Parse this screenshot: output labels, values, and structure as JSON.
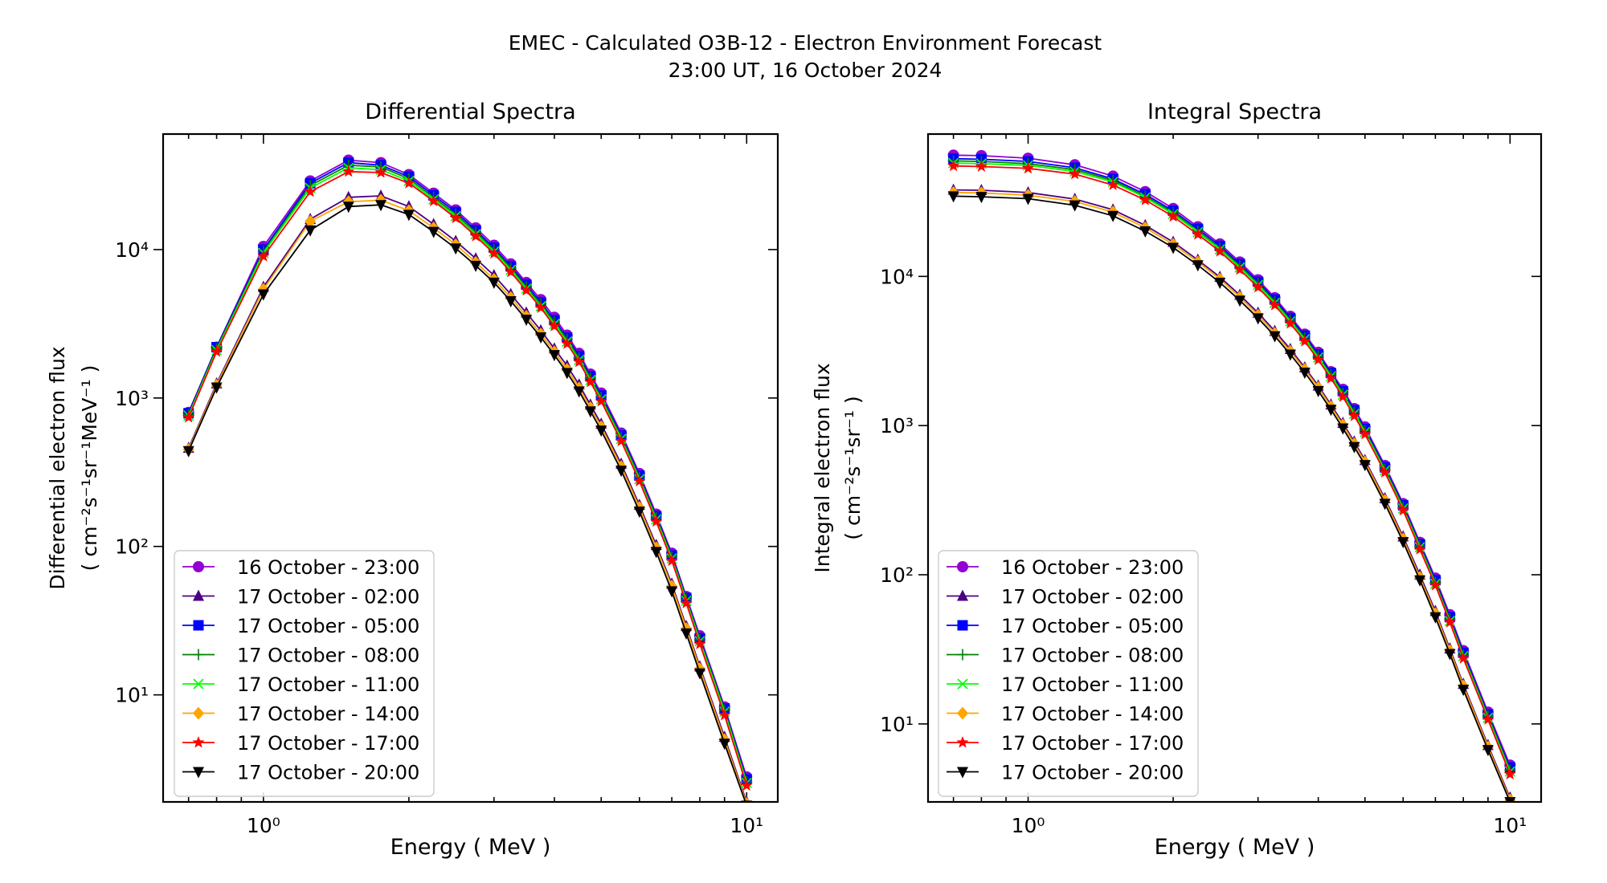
{
  "figure": {
    "title_line1": "EMEC - Calculated O3B-12 - Electron Environment Forecast",
    "title_line2": "23:00 UT, 16 October 2024"
  },
  "chart_data": [
    {
      "type": "line",
      "title": "Differential Spectra",
      "xlabel": "Energy ( MeV )",
      "ylabel_line1": "Differential electron flux",
      "ylabel_line2": "( cm⁻²s⁻¹sr⁻¹MeV⁻¹ )",
      "xscale": "log",
      "yscale": "log",
      "xlim": [
        0.62,
        11.6
      ],
      "ylim": [
        1.9,
        60000
      ],
      "xticks": [
        {
          "value": 1,
          "label": "10⁰"
        },
        {
          "value": 10,
          "label": "10¹"
        }
      ],
      "yticks": [
        {
          "value": 10,
          "label": "10¹"
        },
        {
          "value": 100,
          "label": "10²"
        },
        {
          "value": 1000,
          "label": "10³"
        },
        {
          "value": 10000,
          "label": "10⁴"
        }
      ],
      "legend_position": "lower-left",
      "x": [
        0.7,
        0.8,
        1.0,
        1.25,
        1.5,
        1.75,
        2.0,
        2.25,
        2.5,
        2.75,
        3.0,
        3.25,
        3.5,
        3.75,
        4.0,
        4.25,
        4.5,
        4.75,
        5.0,
        5.5,
        6.0,
        6.5,
        7.0,
        7.5,
        8.0,
        9.0,
        10.0
      ],
      "series": [
        {
          "name": "16 October - 23:00",
          "color": "#9400d3",
          "marker": "circle",
          "values": [
            800,
            2200,
            10500,
            29000,
            40000,
            38500,
            32000,
            24000,
            18500,
            14000,
            10700,
            8000,
            6000,
            4600,
            3500,
            2650,
            2000,
            1450,
            1080,
            580,
            310,
            165,
            90,
            46,
            25,
            8.3,
            2.8
          ]
        },
        {
          "name": "17 October - 02:00",
          "color": "#4b0082",
          "marker": "triangle-up",
          "values": [
            460,
            1250,
            5600,
            16000,
            22500,
            23000,
            19500,
            14800,
            11400,
            8700,
            6700,
            5000,
            3750,
            2850,
            2150,
            1650,
            1230,
            900,
            670,
            360,
            190,
            102,
            56,
            29,
            15.5,
            5.2,
            1.9
          ]
        },
        {
          "name": "17 October - 05:00",
          "color": "#0000ff",
          "marker": "square",
          "values": [
            790,
            2200,
            10000,
            28000,
            38500,
            37000,
            31000,
            23200,
            17900,
            13500,
            10300,
            7700,
            5800,
            4400,
            3350,
            2550,
            1920,
            1400,
            1040,
            560,
            300,
            160,
            87,
            45,
            24,
            8.1,
            2.7
          ]
        },
        {
          "name": "17 October - 08:00",
          "color": "#008000",
          "marker": "plus",
          "values": [
            770,
            2150,
            9700,
            27000,
            37000,
            36000,
            30000,
            22500,
            17300,
            13100,
            10000,
            7500,
            5600,
            4300,
            3250,
            2480,
            1860,
            1360,
            1010,
            545,
            292,
            156,
            85,
            44,
            23.5,
            7.9,
            2.6
          ]
        },
        {
          "name": "17 October - 11:00",
          "color": "#00ff00",
          "marker": "x",
          "values": [
            760,
            2100,
            9500,
            26000,
            35500,
            34500,
            29000,
            21800,
            16800,
            12700,
            9700,
            7300,
            5450,
            4150,
            3150,
            2400,
            1800,
            1320,
            980,
            530,
            284,
            152,
            83,
            43,
            23,
            7.7,
            2.55
          ]
        },
        {
          "name": "17 October - 14:00",
          "color": "#ffa500",
          "marker": "diamond",
          "values": [
            450,
            1220,
            5400,
            15500,
            21000,
            21500,
            18300,
            14000,
            10800,
            8200,
            6300,
            4750,
            3550,
            2700,
            2050,
            1560,
            1170,
            860,
            640,
            345,
            183,
            98,
            54,
            28,
            15,
            5.0,
            1.85
          ]
        },
        {
          "name": "17 October - 17:00",
          "color": "#ff0000",
          "marker": "star",
          "values": [
            740,
            2050,
            9000,
            24500,
            33500,
            33000,
            28000,
            21200,
            16300,
            12300,
            9400,
            7050,
            5300,
            4050,
            3050,
            2320,
            1750,
            1280,
            950,
            512,
            275,
            147,
            80,
            41.5,
            22,
            7.3,
            2.45
          ]
        },
        {
          "name": "17 October - 20:00",
          "color": "#000000",
          "marker": "triangle-down",
          "values": [
            440,
            1180,
            5000,
            13500,
            19500,
            20000,
            17200,
            13200,
            10200,
            7800,
            6000,
            4500,
            3380,
            2570,
            1950,
            1480,
            1110,
            815,
            605,
            325,
            172,
            92,
            50,
            26,
            14,
            4.7,
            1.8
          ]
        }
      ]
    },
    {
      "type": "line",
      "title": "Integral Spectra",
      "xlabel": "Energy ( MeV )",
      "ylabel_line1": "Integral electron flux",
      "ylabel_line2": "( cm⁻²s⁻¹sr⁻¹ )",
      "xscale": "log",
      "yscale": "log",
      "xlim": [
        0.62,
        11.6
      ],
      "ylim": [
        3.0,
        90000
      ],
      "xticks": [
        {
          "value": 1,
          "label": "10⁰"
        },
        {
          "value": 10,
          "label": "10¹"
        }
      ],
      "yticks": [
        {
          "value": 10,
          "label": "10¹"
        },
        {
          "value": 100,
          "label": "10²"
        },
        {
          "value": 1000,
          "label": "10³"
        },
        {
          "value": 10000,
          "label": "10⁴"
        }
      ],
      "legend_position": "lower-left",
      "x": [
        0.7,
        0.8,
        1.0,
        1.25,
        1.5,
        1.75,
        2.0,
        2.25,
        2.5,
        2.75,
        3.0,
        3.25,
        3.5,
        3.75,
        4.0,
        4.25,
        4.5,
        4.75,
        5.0,
        5.5,
        6.0,
        6.5,
        7.0,
        7.5,
        8.0,
        9.0,
        10.0
      ],
      "series": [
        {
          "name": "16 October - 23:00",
          "color": "#9400d3",
          "marker": "circle",
          "values": [
            65000,
            64500,
            62000,
            56000,
            47000,
            37000,
            28500,
            21500,
            16500,
            12500,
            9500,
            7200,
            5400,
            4100,
            3100,
            2300,
            1750,
            1300,
            980,
            540,
            300,
            165,
            95,
            54,
            31,
            12,
            5.3
          ]
        },
        {
          "name": "17 October - 02:00",
          "color": "#4b0082",
          "marker": "triangle-up",
          "values": [
            38000,
            37800,
            36500,
            33000,
            28000,
            22000,
            17000,
            12900,
            9900,
            7500,
            5700,
            4300,
            3250,
            2450,
            1850,
            1380,
            1040,
            780,
            585,
            325,
            180,
            100,
            57,
            32,
            18.5,
            7.2,
            3.2
          ]
        },
        {
          "name": "17 October - 05:00",
          "color": "#0000ff",
          "marker": "square",
          "values": [
            61500,
            61000,
            59000,
            53500,
            45000,
            35500,
            27500,
            20800,
            16000,
            12100,
            9200,
            7000,
            5250,
            4000,
            3000,
            2250,
            1700,
            1270,
            950,
            525,
            292,
            160,
            92,
            52,
            30,
            11.6,
            5.1
          ]
        },
        {
          "name": "17 October - 08:00",
          "color": "#008000",
          "marker": "plus",
          "values": [
            59500,
            59000,
            57000,
            52000,
            44000,
            34500,
            26800,
            20200,
            15500,
            11800,
            8950,
            6800,
            5100,
            3880,
            2920,
            2190,
            1650,
            1230,
            925,
            510,
            284,
            156,
            89,
            50.5,
            29,
            11.3,
            4.9
          ]
        },
        {
          "name": "17 October - 11:00",
          "color": "#00ff00",
          "marker": "x",
          "values": [
            57500,
            57000,
            55500,
            50500,
            43000,
            33800,
            26200,
            19800,
            15200,
            11500,
            8750,
            6650,
            5000,
            3800,
            2860,
            2140,
            1610,
            1200,
            905,
            500,
            278,
            153,
            87,
            49,
            28.5,
            11,
            4.8
          ]
        },
        {
          "name": "17 October - 14:00",
          "color": "#ffa500",
          "marker": "diamond",
          "values": [
            36500,
            36300,
            35000,
            31800,
            27000,
            21200,
            16400,
            12500,
            9600,
            7250,
            5500,
            4150,
            3150,
            2380,
            1800,
            1340,
            1010,
            755,
            570,
            315,
            174,
            96,
            55,
            31,
            18,
            7.0,
            3.1
          ]
        },
        {
          "name": "17 October - 17:00",
          "color": "#ff0000",
          "marker": "star",
          "values": [
            55000,
            54500,
            53000,
            48500,
            41000,
            32500,
            25200,
            19100,
            14700,
            11100,
            8450,
            6420,
            4830,
            3670,
            2760,
            2070,
            1560,
            1160,
            875,
            485,
            270,
            148,
            85,
            48,
            27.5,
            10.7,
            4.6
          ]
        },
        {
          "name": "17 October - 20:00",
          "color": "#000000",
          "marker": "triangle-down",
          "values": [
            34500,
            34200,
            33200,
            30000,
            25500,
            20100,
            15600,
            11900,
            9100,
            6900,
            5250,
            3980,
            3000,
            2270,
            1710,
            1280,
            960,
            720,
            545,
            300,
            166,
            92,
            52,
            29.5,
            17,
            6.7,
            3.0
          ]
        }
      ]
    }
  ]
}
